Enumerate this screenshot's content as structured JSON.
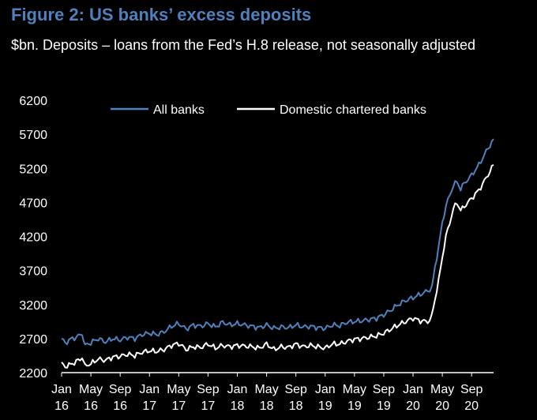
{
  "header": {
    "title": "Figure 2: US banks’ excess deposits",
    "subtitle": "$bn. Deposits – loans from the Fed’s H.8 release, not seasonally adjusted"
  },
  "chart_data": {
    "type": "line",
    "title": "Figure 2: US banks’ excess deposits",
    "ylabel": "",
    "xlabel": "",
    "ylim": [
      2200,
      6200
    ],
    "yticks": [
      2200,
      2700,
      3200,
      3700,
      4200,
      4700,
      5200,
      5700,
      6200
    ],
    "xlim": [
      0,
      59
    ],
    "xticks": [
      {
        "month": "Jan",
        "year": "16",
        "x": 0
      },
      {
        "month": "May",
        "year": "16",
        "x": 4
      },
      {
        "month": "Sep",
        "year": "16",
        "x": 8
      },
      {
        "month": "Jan",
        "year": "17",
        "x": 12
      },
      {
        "month": "May",
        "year": "17",
        "x": 16
      },
      {
        "month": "Sep",
        "year": "17",
        "x": 20
      },
      {
        "month": "Jan",
        "year": "18",
        "x": 24
      },
      {
        "month": "May",
        "year": "18",
        "x": 28
      },
      {
        "month": "Sep",
        "year": "18",
        "x": 32
      },
      {
        "month": "Jan",
        "year": "19",
        "x": 36
      },
      {
        "month": "May",
        "year": "19",
        "x": 40
      },
      {
        "month": "Sep",
        "year": "19",
        "x": 44
      },
      {
        "month": "Jan",
        "year": "20",
        "x": 48
      },
      {
        "month": "May",
        "year": "20",
        "x": 52
      },
      {
        "month": "Sep",
        "year": "20",
        "x": 56
      }
    ],
    "legend_position": "top",
    "grid": false,
    "series": [
      {
        "name": "All banks",
        "color": "#4f81bd",
        "points": [
          [
            0,
            2700
          ],
          [
            0.5,
            2630
          ],
          [
            1,
            2680
          ],
          [
            2,
            2720
          ],
          [
            2.8,
            2770
          ],
          [
            3.2,
            2600
          ],
          [
            4,
            2640
          ],
          [
            5,
            2700
          ],
          [
            6,
            2650
          ],
          [
            7,
            2700
          ],
          [
            8,
            2680
          ],
          [
            9,
            2720
          ],
          [
            10,
            2700
          ],
          [
            11,
            2760
          ],
          [
            12,
            2780
          ],
          [
            13,
            2760
          ],
          [
            14,
            2800
          ],
          [
            15,
            2880
          ],
          [
            16,
            2920
          ],
          [
            17,
            2840
          ],
          [
            18,
            2900
          ],
          [
            19,
            2880
          ],
          [
            20,
            2920
          ],
          [
            21,
            2870
          ],
          [
            22,
            2940
          ],
          [
            23,
            2900
          ],
          [
            24,
            2920
          ],
          [
            25,
            2900
          ],
          [
            26,
            2880
          ],
          [
            27,
            2860
          ],
          [
            28,
            2900
          ],
          [
            29,
            2850
          ],
          [
            30,
            2870
          ],
          [
            31,
            2860
          ],
          [
            32,
            2900
          ],
          [
            33,
            2870
          ],
          [
            34,
            2880
          ],
          [
            35,
            2860
          ],
          [
            36,
            2850
          ],
          [
            37,
            2900
          ],
          [
            38,
            2890
          ],
          [
            39,
            2940
          ],
          [
            40,
            2950
          ],
          [
            41,
            2960
          ],
          [
            42,
            2980
          ],
          [
            43,
            3000
          ],
          [
            44,
            3050
          ],
          [
            45,
            3120
          ],
          [
            46,
            3200
          ],
          [
            47,
            3260
          ],
          [
            48,
            3300
          ],
          [
            49,
            3350
          ],
          [
            50,
            3400
          ],
          [
            50.6,
            3450
          ],
          [
            51,
            3750
          ],
          [
            51.5,
            4050
          ],
          [
            52,
            4400
          ],
          [
            52.5,
            4650
          ],
          [
            53,
            4800
          ],
          [
            53.5,
            4950
          ],
          [
            54,
            5000
          ],
          [
            54.5,
            4900
          ],
          [
            55,
            4980
          ],
          [
            56,
            5100
          ],
          [
            57,
            5250
          ],
          [
            58,
            5450
          ],
          [
            59,
            5630
          ]
        ]
      },
      {
        "name": "Domestic chartered banks",
        "color": "#ffffff",
        "points": [
          [
            0,
            2330
          ],
          [
            0.5,
            2290
          ],
          [
            1,
            2310
          ],
          [
            2,
            2360
          ],
          [
            2.8,
            2420
          ],
          [
            3.2,
            2300
          ],
          [
            4,
            2330
          ],
          [
            5,
            2400
          ],
          [
            6,
            2380
          ],
          [
            7,
            2430
          ],
          [
            8,
            2440
          ],
          [
            9,
            2470
          ],
          [
            10,
            2450
          ],
          [
            11,
            2500
          ],
          [
            12,
            2520
          ],
          [
            13,
            2510
          ],
          [
            14,
            2540
          ],
          [
            15,
            2600
          ],
          [
            16,
            2630
          ],
          [
            17,
            2540
          ],
          [
            18,
            2580
          ],
          [
            19,
            2570
          ],
          [
            20,
            2620
          ],
          [
            21,
            2560
          ],
          [
            22,
            2600
          ],
          [
            23,
            2580
          ],
          [
            24,
            2600
          ],
          [
            25,
            2590
          ],
          [
            26,
            2580
          ],
          [
            27,
            2560
          ],
          [
            28,
            2620
          ],
          [
            29,
            2540
          ],
          [
            30,
            2580
          ],
          [
            31,
            2570
          ],
          [
            32,
            2620
          ],
          [
            33,
            2580
          ],
          [
            34,
            2600
          ],
          [
            35,
            2580
          ],
          [
            36,
            2560
          ],
          [
            37,
            2620
          ],
          [
            38,
            2620
          ],
          [
            39,
            2660
          ],
          [
            40,
            2690
          ],
          [
            41,
            2700
          ],
          [
            42,
            2720
          ],
          [
            43,
            2740
          ],
          [
            44,
            2780
          ],
          [
            45,
            2840
          ],
          [
            46,
            2900
          ],
          [
            47,
            2950
          ],
          [
            48,
            3000
          ],
          [
            49,
            2960
          ],
          [
            50,
            2950
          ],
          [
            50.5,
            3000
          ],
          [
            51,
            3280
          ],
          [
            51.5,
            3550
          ],
          [
            52,
            3900
          ],
          [
            52.5,
            4200
          ],
          [
            53,
            4400
          ],
          [
            53.5,
            4600
          ],
          [
            54,
            4700
          ],
          [
            54.5,
            4580
          ],
          [
            55,
            4640
          ],
          [
            56,
            4760
          ],
          [
            57,
            4880
          ],
          [
            58,
            5060
          ],
          [
            59,
            5250
          ]
        ]
      }
    ]
  }
}
